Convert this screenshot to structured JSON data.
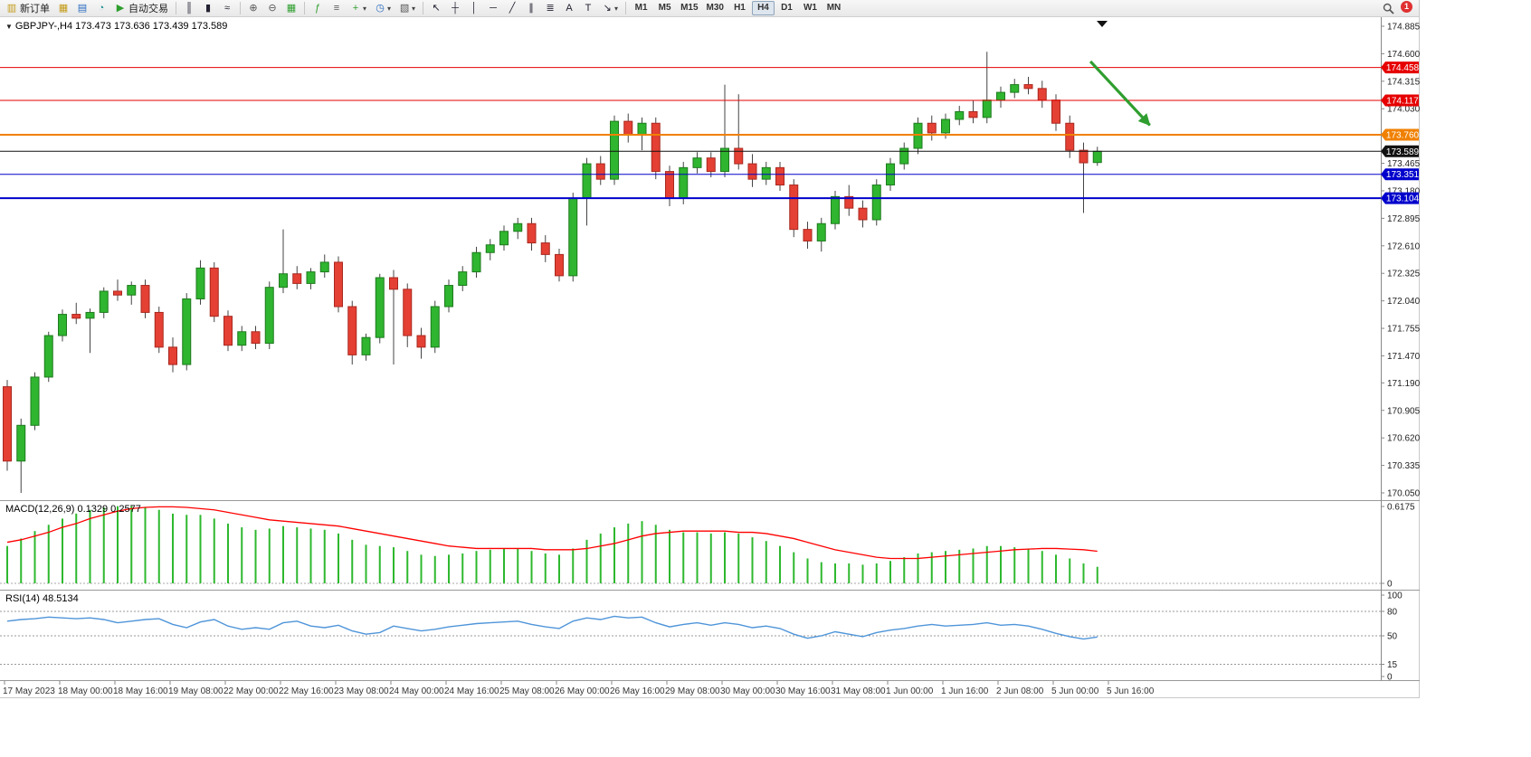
{
  "toolbar": {
    "new_order_label": "新订单",
    "autotrading_label": "自动交易",
    "timeframes": [
      "M1",
      "M5",
      "M15",
      "M30",
      "H1",
      "H4",
      "D1",
      "W1",
      "MN"
    ],
    "active_timeframe": "H4",
    "notification_count": "1",
    "icons": {
      "new_order": "▥",
      "market_watch": "▦",
      "data_window": "▤",
      "strategy_tester": "◔",
      "autotrading": "▶",
      "bars": "║",
      "candles": "▮",
      "line_chart": "≈",
      "zoom_in": "⊕",
      "zoom_out": "⊖",
      "tile_windows": "▦",
      "indicators": "ƒ",
      "indicator_list": "≡",
      "add_indicator": "+",
      "periods": "◷",
      "templates": "▧",
      "cursor": "↖",
      "crosshair": "┼",
      "vertical_line": "│",
      "horizontal_line": "─",
      "trendline": "╱",
      "channel": "∥",
      "fibonacci": "≣",
      "text": "A",
      "text_label": "T",
      "arrow_tool": "↘",
      "dropdown": "▾"
    }
  },
  "chart": {
    "collapse_icon": "▼",
    "symbol_label": "GBPJPY-,H4 173.473 173.636 173.439 173.589",
    "price_axis_labels": [
      "174.885",
      "174.600",
      "174.315",
      "174.030",
      "173.465",
      "173.180",
      "172.895",
      "172.610",
      "172.325",
      "172.040",
      "171.755",
      "171.470",
      "171.190",
      "170.905",
      "170.620",
      "170.335",
      "170.050"
    ],
    "levels": [
      {
        "price": 174.458,
        "label": "174.458",
        "color": "#e60000",
        "width": 1
      },
      {
        "price": 174.117,
        "label": "174.117",
        "color": "#e60000",
        "width": 1
      },
      {
        "price": 173.76,
        "label": "173.760",
        "color": "#f08000",
        "width": 2
      },
      {
        "price": 173.589,
        "label": "173.589",
        "color": "#111111",
        "width": 1
      },
      {
        "price": 173.351,
        "label": "173.351",
        "color": "#0000cc",
        "width": 1
      },
      {
        "price": 173.104,
        "label": "173.104",
        "color": "#0000cc",
        "width": 2
      }
    ],
    "colors": {
      "up": "#2fb52f",
      "down": "#e54034",
      "up_edge": "#1f7a1f",
      "down_edge": "#a8281f",
      "wick": "#444444"
    }
  },
  "macd_panel": {
    "label": "MACD(12,26,9) 0.1329 0.2577",
    "axis_labels": [
      "0.6175",
      "0"
    ],
    "histogram_color": "#2eb82e",
    "signal_color": "#ff0000"
  },
  "rsi_panel": {
    "label": "RSI(14) 48.5134",
    "axis_labels": [
      "100",
      "80",
      "50",
      "15",
      "0"
    ],
    "line_color": "#4f95d9"
  },
  "chart_data": {
    "type": "candlestick",
    "title": "GBPJPY- H4",
    "ylim": [
      170.05,
      174.885
    ],
    "hlines": [
      174.458,
      174.117,
      173.76,
      173.589,
      173.351,
      173.104
    ],
    "x_labels": [
      "17 May 2023",
      "18 May 00:00",
      "18 May 16:00",
      "19 May 08:00",
      "22 May 00:00",
      "22 May 16:00",
      "23 May 08:00",
      "24 May 00:00",
      "24 May 16:00",
      "25 May 08:00",
      "26 May 00:00",
      "26 May 16:00",
      "29 May 08:00",
      "30 May 00:00",
      "30 May 16:00",
      "31 May 08:00",
      "1 Jun 00:00",
      "1 Jun 16:00",
      "2 Jun 08:00",
      "5 Jun 00:00",
      "5 Jun 16:00"
    ],
    "bars_per_label": 4,
    "ohlc": [
      [
        171.15,
        171.22,
        170.28,
        170.38
      ],
      [
        170.38,
        170.82,
        170.05,
        170.75
      ],
      [
        170.75,
        171.3,
        170.7,
        171.25
      ],
      [
        171.25,
        171.72,
        171.2,
        171.68
      ],
      [
        171.68,
        171.95,
        171.62,
        171.9
      ],
      [
        171.9,
        172.02,
        171.8,
        171.86
      ],
      [
        171.86,
        171.96,
        171.5,
        171.92
      ],
      [
        171.92,
        172.18,
        171.86,
        172.14
      ],
      [
        172.14,
        172.26,
        172.04,
        172.1
      ],
      [
        172.1,
        172.24,
        172.0,
        172.2
      ],
      [
        172.2,
        172.26,
        171.86,
        171.92
      ],
      [
        171.92,
        171.98,
        171.5,
        171.56
      ],
      [
        171.56,
        171.66,
        171.3,
        171.38
      ],
      [
        171.38,
        172.12,
        171.32,
        172.06
      ],
      [
        172.06,
        172.46,
        172.0,
        172.38
      ],
      [
        172.38,
        172.44,
        171.82,
        171.88
      ],
      [
        171.88,
        171.94,
        171.52,
        171.58
      ],
      [
        171.58,
        171.78,
        171.52,
        171.72
      ],
      [
        171.72,
        171.78,
        171.54,
        171.6
      ],
      [
        171.6,
        172.24,
        171.54,
        172.18
      ],
      [
        172.18,
        172.78,
        172.12,
        172.32
      ],
      [
        172.32,
        172.4,
        172.16,
        172.22
      ],
      [
        172.22,
        172.38,
        172.16,
        172.34
      ],
      [
        172.34,
        172.52,
        172.28,
        172.44
      ],
      [
        172.44,
        172.5,
        171.92,
        171.98
      ],
      [
        171.98,
        172.04,
        171.38,
        171.48
      ],
      [
        171.48,
        171.7,
        171.42,
        171.66
      ],
      [
        171.66,
        172.32,
        171.6,
        172.28
      ],
      [
        172.28,
        172.36,
        171.38,
        172.16
      ],
      [
        172.16,
        172.22,
        171.56,
        171.68
      ],
      [
        171.68,
        171.76,
        171.44,
        171.56
      ],
      [
        171.56,
        172.04,
        171.5,
        171.98
      ],
      [
        171.98,
        172.26,
        171.92,
        172.2
      ],
      [
        172.2,
        172.4,
        172.14,
        172.34
      ],
      [
        172.34,
        172.6,
        172.28,
        172.54
      ],
      [
        172.54,
        172.68,
        172.46,
        172.62
      ],
      [
        172.62,
        172.82,
        172.56,
        172.76
      ],
      [
        172.76,
        172.9,
        172.68,
        172.84
      ],
      [
        172.84,
        172.9,
        172.56,
        172.64
      ],
      [
        172.64,
        172.72,
        172.44,
        172.52
      ],
      [
        172.52,
        172.58,
        172.24,
        172.3
      ],
      [
        172.3,
        173.16,
        172.24,
        173.1
      ],
      [
        173.1,
        173.52,
        172.82,
        173.46
      ],
      [
        173.46,
        173.54,
        173.24,
        173.3
      ],
      [
        173.3,
        173.96,
        173.24,
        173.9
      ],
      [
        173.9,
        173.98,
        173.68,
        173.76
      ],
      [
        173.76,
        173.94,
        173.6,
        173.88
      ],
      [
        173.88,
        173.94,
        173.3,
        173.38
      ],
      [
        173.38,
        173.44,
        173.02,
        173.1
      ],
      [
        173.1,
        173.48,
        173.04,
        173.42
      ],
      [
        173.42,
        173.58,
        173.36,
        173.52
      ],
      [
        173.52,
        173.58,
        173.32,
        173.38
      ],
      [
        173.38,
        174.28,
        173.32,
        173.62
      ],
      [
        173.62,
        174.18,
        173.4,
        173.46
      ],
      [
        173.46,
        173.56,
        173.22,
        173.3
      ],
      [
        173.3,
        173.48,
        173.24,
        173.42
      ],
      [
        173.42,
        173.48,
        173.18,
        173.24
      ],
      [
        173.24,
        173.3,
        172.7,
        172.78
      ],
      [
        172.78,
        172.86,
        172.58,
        172.66
      ],
      [
        172.66,
        172.9,
        172.55,
        172.84
      ],
      [
        172.84,
        173.18,
        172.78,
        173.12
      ],
      [
        173.12,
        173.24,
        172.92,
        173.0
      ],
      [
        173.0,
        173.08,
        172.8,
        172.88
      ],
      [
        172.88,
        173.3,
        172.82,
        173.24
      ],
      [
        173.24,
        173.52,
        173.18,
        173.46
      ],
      [
        173.46,
        173.68,
        173.4,
        173.62
      ],
      [
        173.62,
        173.94,
        173.56,
        173.88
      ],
      [
        173.88,
        173.96,
        173.7,
        173.78
      ],
      [
        173.78,
        173.98,
        173.72,
        173.92
      ],
      [
        173.92,
        174.06,
        173.86,
        174.0
      ],
      [
        174.0,
        174.12,
        173.88,
        173.94
      ],
      [
        173.94,
        174.62,
        173.88,
        174.12
      ],
      [
        174.12,
        174.26,
        174.04,
        174.2
      ],
      [
        174.2,
        174.34,
        174.14,
        174.28
      ],
      [
        174.28,
        174.36,
        174.18,
        174.24
      ],
      [
        174.24,
        174.32,
        174.04,
        174.12
      ],
      [
        174.12,
        174.18,
        173.8,
        173.88
      ],
      [
        173.88,
        173.96,
        173.52,
        173.6
      ],
      [
        173.6,
        173.68,
        172.95,
        173.47
      ],
      [
        173.473,
        173.636,
        173.439,
        173.589
      ]
    ],
    "indicators": {
      "macd": {
        "params": "12,26,9",
        "main_last": 0.1329,
        "signal_last": 0.2577,
        "ylim": [
          0,
          0.6175
        ],
        "histogram": [
          0.3,
          0.36,
          0.42,
          0.47,
          0.52,
          0.56,
          0.59,
          0.61,
          0.62,
          0.62,
          0.61,
          0.59,
          0.56,
          0.55,
          0.55,
          0.52,
          0.48,
          0.45,
          0.43,
          0.44,
          0.46,
          0.45,
          0.44,
          0.43,
          0.4,
          0.35,
          0.31,
          0.3,
          0.29,
          0.26,
          0.23,
          0.22,
          0.23,
          0.24,
          0.26,
          0.27,
          0.28,
          0.28,
          0.26,
          0.24,
          0.23,
          0.28,
          0.35,
          0.4,
          0.45,
          0.48,
          0.5,
          0.47,
          0.43,
          0.41,
          0.41,
          0.4,
          0.41,
          0.4,
          0.37,
          0.34,
          0.3,
          0.25,
          0.2,
          0.17,
          0.16,
          0.16,
          0.15,
          0.16,
          0.18,
          0.21,
          0.24,
          0.25,
          0.26,
          0.27,
          0.28,
          0.3,
          0.3,
          0.29,
          0.28,
          0.26,
          0.23,
          0.2,
          0.16,
          0.1329
        ],
        "signal": [
          0.33,
          0.35,
          0.38,
          0.41,
          0.45,
          0.48,
          0.52,
          0.55,
          0.58,
          0.6,
          0.61,
          0.615,
          0.615,
          0.61,
          0.6,
          0.59,
          0.57,
          0.55,
          0.53,
          0.51,
          0.5,
          0.49,
          0.48,
          0.47,
          0.46,
          0.44,
          0.42,
          0.4,
          0.38,
          0.36,
          0.34,
          0.32,
          0.3,
          0.29,
          0.28,
          0.28,
          0.28,
          0.28,
          0.28,
          0.27,
          0.27,
          0.27,
          0.28,
          0.3,
          0.32,
          0.35,
          0.38,
          0.4,
          0.41,
          0.42,
          0.42,
          0.42,
          0.42,
          0.41,
          0.41,
          0.4,
          0.38,
          0.36,
          0.33,
          0.3,
          0.27,
          0.25,
          0.23,
          0.21,
          0.2,
          0.2,
          0.2,
          0.21,
          0.22,
          0.23,
          0.24,
          0.25,
          0.26,
          0.27,
          0.275,
          0.28,
          0.28,
          0.275,
          0.27,
          0.2577
        ]
      },
      "rsi": {
        "period": 14,
        "last": 48.5134,
        "ylim": [
          0,
          100
        ],
        "levels": [
          80,
          50,
          15
        ],
        "values": [
          68,
          70,
          71,
          73,
          72,
          71,
          72,
          70,
          66,
          68,
          70,
          71,
          64,
          60,
          67,
          70,
          62,
          58,
          60,
          58,
          66,
          68,
          62,
          60,
          63,
          56,
          52,
          54,
          62,
          59,
          56,
          58,
          61,
          63,
          65,
          66,
          67,
          68,
          64,
          61,
          59,
          68,
          72,
          70,
          74,
          72,
          73,
          66,
          61,
          64,
          66,
          63,
          66,
          64,
          60,
          62,
          59,
          52,
          47,
          50,
          55,
          52,
          49,
          54,
          57,
          59,
          62,
          64,
          62,
          63,
          64,
          66,
          63,
          64,
          62,
          58,
          53,
          49,
          46,
          48.5
        ],
        "line_color": "#4f95d9"
      }
    },
    "annotations": [
      {
        "type": "arrow",
        "direction": "down-right",
        "color": "#2f9e2f",
        "from": {
          "bar": 78.5,
          "price": 174.52
        },
        "to": {
          "bar": 82.8,
          "price": 173.86
        }
      }
    ]
  }
}
